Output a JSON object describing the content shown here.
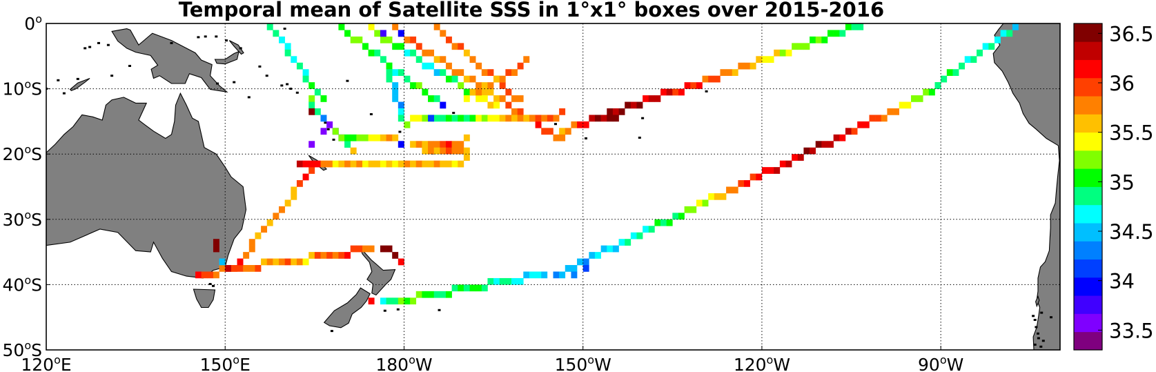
{
  "title": "Temporal mean of Satellite SSS in 1°x1° boxes over 2015-2016",
  "map": {
    "lon_range": [
      120,
      290
    ],
    "lat_range": [
      -50,
      0
    ],
    "lon_ticks": [
      {
        "value": 120,
        "label": "120",
        "suffix": "E"
      },
      {
        "value": 150,
        "label": "150",
        "suffix": "E"
      },
      {
        "value": 180,
        "label": "180",
        "suffix": "W"
      },
      {
        "value": 210,
        "label": "150",
        "suffix": "W"
      },
      {
        "value": 240,
        "label": "120",
        "suffix": "W"
      },
      {
        "value": 270,
        "label": "90",
        "suffix": "W"
      }
    ],
    "lat_ticks": [
      {
        "value": 0,
        "label": "0",
        "suffix": ""
      },
      {
        "value": -10,
        "label": "10",
        "suffix": "S"
      },
      {
        "value": -20,
        "label": "20",
        "suffix": "S"
      },
      {
        "value": -30,
        "label": "30",
        "suffix": "S"
      },
      {
        "value": -40,
        "label": "40",
        "suffix": "S"
      },
      {
        "value": -50,
        "label": "50",
        "suffix": "S"
      }
    ],
    "grid": "dotted",
    "land_color": "#808080"
  },
  "colorbar": {
    "min": 33.3,
    "max": 36.6,
    "ticks": [
      36.5,
      36,
      35.5,
      35,
      34.5,
      34,
      33.5
    ],
    "tick_labels": [
      "36.5",
      "36",
      "35.5",
      "35",
      "34.5",
      "34",
      "33.5"
    ],
    "colors": [
      "#7f007f",
      "#7f00ff",
      "#4000ff",
      "#0000ff",
      "#0040ff",
      "#0080ff",
      "#00bfff",
      "#00ffff",
      "#00ff80",
      "#00ff00",
      "#80ff00",
      "#ffff00",
      "#ffc000",
      "#ff8000",
      "#ff4000",
      "#ff0000",
      "#c00000",
      "#800000"
    ]
  },
  "chart_data": {
    "type": "heatmap",
    "variable": "SSS",
    "title": "Temporal mean of Satellite SSS in 1°x1° boxes over 2015-2016",
    "xlim": [
      120,
      290
    ],
    "ylim": [
      -50,
      0
    ],
    "tracks": [
      {
        "from": [
          145.5,
          -38.5
        ],
        "to": [
          174.5,
          -34.5
        ],
        "values": [
          36.1,
          35.8,
          35.9,
          35.7,
          35.8,
          35.6,
          35.9,
          36.0,
          35.8
        ]
      },
      {
        "from": [
          150.5,
          -38.0
        ],
        "to": [
          164.5,
          -22.5
        ],
        "values": [
          36.2,
          36.0,
          35.8,
          35.6,
          35.8,
          35.7,
          35.6,
          35.9,
          36.1
        ]
      },
      {
        "from": [
          164.5,
          -21.5
        ],
        "to": [
          190.0,
          -21.0
        ],
        "values": [
          36.2,
          35.6,
          35.7,
          35.5,
          35.6,
          35.7,
          35.6,
          35.5
        ]
      },
      {
        "from": [
          176.0,
          -43.0
        ],
        "to": [
          203.0,
          -38.5
        ],
        "values": [
          34.7,
          35.2,
          35.0,
          34.9,
          35.0,
          34.8,
          34.7,
          34.6
        ]
      },
      {
        "from": [
          205.0,
          -38.5
        ],
        "to": [
          269.0,
          -10.0
        ],
        "values": [
          34.4,
          34.5,
          34.6,
          34.8,
          35.0,
          35.3,
          35.8,
          36.2,
          36.3,
          36.4,
          36.2,
          35.9,
          35.4,
          35.0
        ]
      },
      {
        "from": [
          269.0,
          -10.0
        ],
        "to": [
          283.5,
          0.0
        ],
        "values": [
          35.0,
          34.9,
          34.8,
          34.7,
          34.6
        ]
      },
      {
        "from": [
          206.0,
          -16.5
        ],
        "to": [
          257.0,
          0.0
        ],
        "values": [
          35.5,
          36.4,
          36.5,
          36.3,
          36.1,
          35.9,
          35.7,
          35.4,
          35.2,
          35.0,
          34.9
        ]
      },
      {
        "from": [
          157.0,
          0.0
        ],
        "to": [
          166.0,
          -12.0
        ],
        "values": [
          35.0,
          34.8,
          34.7,
          34.8,
          34.9,
          35.0
        ]
      },
      {
        "from": [
          178.0,
          -1.0
        ],
        "to": [
          206.0,
          -18.0
        ],
        "values": [
          35.8,
          35.9,
          35.7,
          35.8,
          35.6,
          35.9,
          36.0,
          35.8
        ]
      },
      {
        "from": [
          184.0,
          0.0
        ],
        "to": [
          199.0,
          -12.0
        ],
        "values": [
          35.8,
          35.9,
          35.7,
          35.9,
          35.8
        ]
      },
      {
        "from": [
          168.0,
          0.0
        ],
        "to": [
          185.0,
          -12.0
        ],
        "values": [
          35.0,
          35.2,
          35.0,
          34.8,
          35.1,
          35.0
        ]
      },
      {
        "from": [
          174.0,
          -1.0
        ],
        "to": [
          195.0,
          -13.0
        ],
        "values": [
          35.4,
          35.1,
          34.8,
          34.6,
          35.0,
          35.3,
          35.6
        ]
      },
      {
        "from": [
          164.0,
          -12.0
        ],
        "to": [
          171.0,
          -20.0
        ],
        "values": [
          35.1,
          34.9,
          33.6,
          34.2,
          35.5
        ]
      },
      {
        "from": [
          181.0,
          -18.5
        ],
        "to": [
          190.0,
          -18.0
        ],
        "values": [
          35.6,
          35.8,
          36.0,
          35.7
        ]
      },
      {
        "from": [
          181.0,
          -15.0
        ],
        "to": [
          206.0,
          -14.0
        ],
        "values": [
          35.4,
          34.9,
          35.1,
          35.6,
          35.8,
          35.9
        ]
      },
      {
        "from": [
          183.0,
          -20.0
        ],
        "to": [
          190.0,
          -20.0
        ],
        "values": [
          35.6,
          35.8,
          35.7
        ]
      },
      {
        "from": [
          177.0,
          -7.0
        ],
        "to": [
          180.0,
          -16.0
        ],
        "values": [
          35.0,
          34.7,
          34.3,
          35.2
        ]
      },
      {
        "from": [
          190.0,
          -11.5
        ],
        "to": [
          200.0,
          -6.0
        ],
        "values": [
          35.5,
          35.8,
          35.9
        ]
      },
      {
        "from": [
          168.0,
          -17.0
        ],
        "to": [
          178.0,
          -17.5
        ],
        "values": [
          35.3,
          35.0,
          35.5,
          35.6
        ]
      }
    ],
    "boxes": [
      {
        "lon": 148.5,
        "lat": -33.5,
        "value": 36.6
      },
      {
        "lon": 148.5,
        "lat": -34.5,
        "value": 36.6
      },
      {
        "lon": 149.5,
        "lat": -36.5,
        "value": 34.5
      },
      {
        "lon": 176.5,
        "lat": -34.5,
        "value": 36.6
      },
      {
        "lon": 177.5,
        "lat": -34.5,
        "value": 36.6
      },
      {
        "lon": 178.5,
        "lat": -35.5,
        "value": 36.6
      },
      {
        "lon": 179.5,
        "lat": -36.5,
        "value": 36.1
      },
      {
        "lon": 174.5,
        "lat": -42.5,
        "value": 36.2
      },
      {
        "lon": 164.5,
        "lat": -13.5,
        "value": 36.6
      },
      {
        "lon": 164.5,
        "lat": -18.5,
        "value": 33.5
      },
      {
        "lon": 166.5,
        "lat": -16.5,
        "value": 33.5
      },
      {
        "lon": 176.5,
        "lat": -1.5,
        "value": 33.8
      },
      {
        "lon": 179.5,
        "lat": -1.5,
        "value": 34.0
      },
      {
        "lon": 186.5,
        "lat": -12.5,
        "value": 33.9
      },
      {
        "lon": 184.5,
        "lat": -14.5,
        "value": 34.2
      },
      {
        "lon": 179.5,
        "lat": -18.5,
        "value": 33.9
      },
      {
        "lon": 210.5,
        "lat": -37.5,
        "value": 34.1
      },
      {
        "lon": 208.5,
        "lat": -38.5,
        "value": 34.3
      },
      {
        "lon": 162.5,
        "lat": -21.5,
        "value": 36.3
      },
      {
        "lon": 163.5,
        "lat": -21.5,
        "value": 36.2
      },
      {
        "lon": 214.5,
        "lat": -14.5,
        "value": 36.5
      },
      {
        "lon": 215.5,
        "lat": -14.5,
        "value": 36.6
      }
    ],
    "colorbar_range": [
      33.3,
      36.6
    ]
  }
}
